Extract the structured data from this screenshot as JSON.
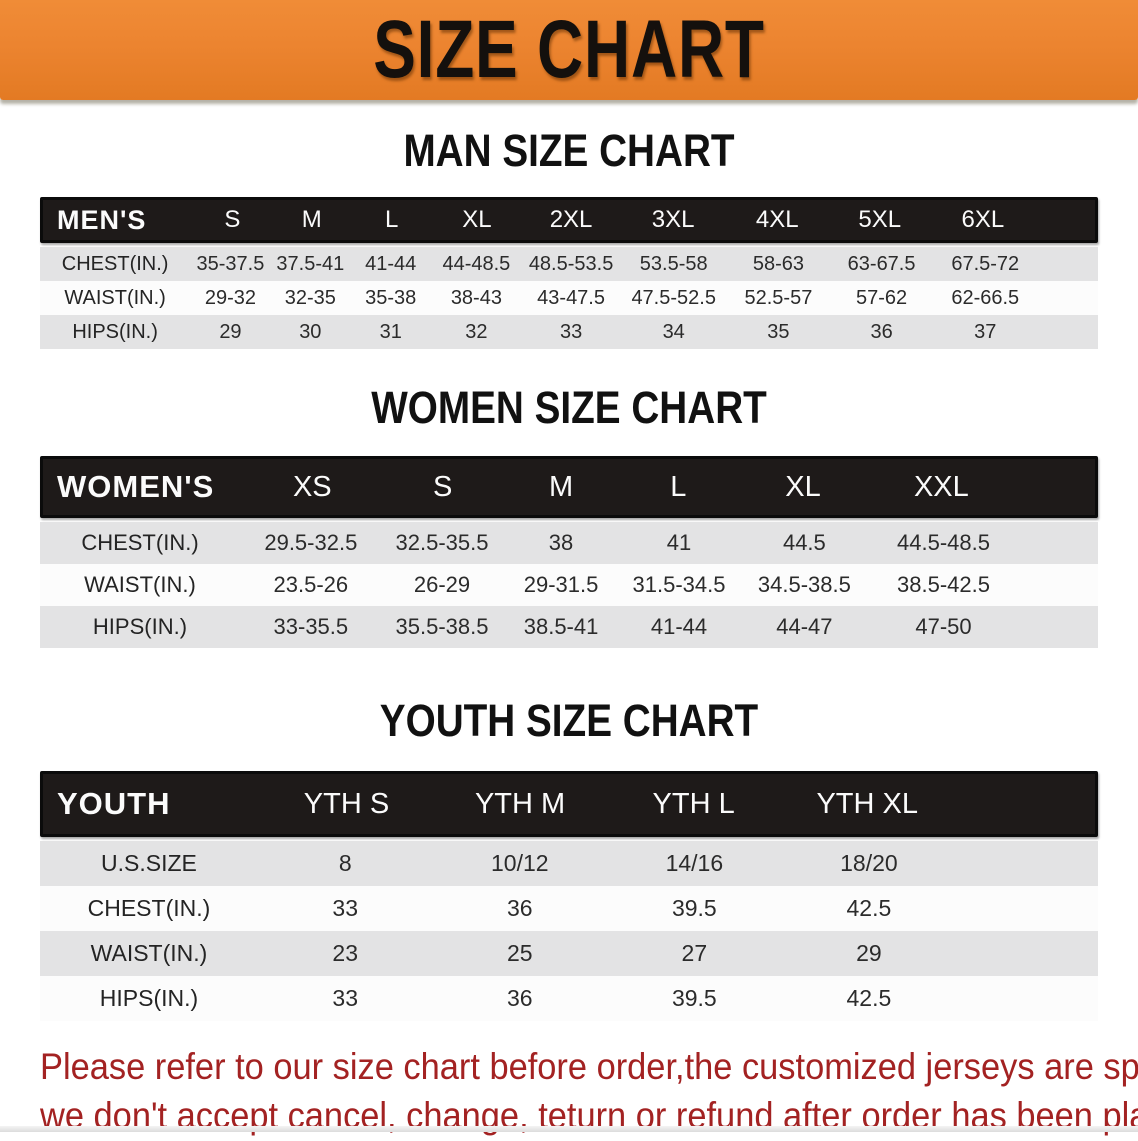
{
  "banner": {
    "title": "SIZE CHART",
    "bg_color": "#EC8430"
  },
  "tables": [
    {
      "heading": "MAN SIZE CHART",
      "group_label": "MEN'S",
      "sizes": [
        "S",
        "M",
        "L",
        "XL",
        "2XL",
        "3XL",
        "4XL",
        "5XL",
        "6XL"
      ],
      "rows": [
        {
          "label": "CHEST(IN.)",
          "values": [
            "35-37.5",
            "37.5-41",
            "41-44",
            "44-48.5",
            "48.5-53.5",
            "53.5-58",
            "58-63",
            "63-67.5",
            "67.5-72"
          ]
        },
        {
          "label": "WAIST(IN.)",
          "values": [
            "29-32",
            "32-35",
            "35-38",
            "38-43",
            "43-47.5",
            "47.5-52.5",
            "52.5-57",
            "57-62",
            "62-66.5"
          ]
        },
        {
          "label": "HIPS(IN.)",
          "values": [
            "29",
            "30",
            "31",
            "32",
            "33",
            "34",
            "35",
            "36",
            "37"
          ]
        }
      ]
    },
    {
      "heading": "WOMEN SIZE CHART",
      "group_label": "WOMEN'S",
      "sizes": [
        "XS",
        "S",
        "M",
        "L",
        "XL",
        "XXL"
      ],
      "rows": [
        {
          "label": "CHEST(IN.)",
          "values": [
            "29.5-32.5",
            "32.5-35.5",
            "38",
            "41",
            "44.5",
            "44.5-48.5"
          ]
        },
        {
          "label": "WAIST(IN.)",
          "values": [
            "23.5-26",
            "26-29",
            "29-31.5",
            "31.5-34.5",
            "34.5-38.5",
            "38.5-42.5"
          ]
        },
        {
          "label": "HIPS(IN.)",
          "values": [
            "33-35.5",
            "35.5-38.5",
            "38.5-41",
            "41-44",
            "44-47",
            "47-50"
          ]
        }
      ]
    },
    {
      "heading": "YOUTH SIZE CHART",
      "group_label": "YOUTH",
      "sizes": [
        "YTH S",
        "YTH M",
        "YTH L",
        "YTH XL"
      ],
      "rows": [
        {
          "label": "U.S.SIZE",
          "values": [
            "8",
            "10/12",
            "14/16",
            "18/20"
          ]
        },
        {
          "label": "CHEST(IN.)",
          "values": [
            "33",
            "36",
            "39.5",
            "42.5"
          ]
        },
        {
          "label": "WAIST(IN.)",
          "values": [
            "23",
            "25",
            "27",
            "29"
          ]
        },
        {
          "label": "HIPS(IN.)",
          "values": [
            "33",
            "36",
            "39.5",
            "42.5"
          ]
        }
      ]
    }
  ],
  "disclaimer": {
    "color": "#A32222",
    "lines": [
      "Please refer to our size chart before order,the customized jerseys are special products,",
      "we don't accept cancel, change, teturn or refund after order has been placed!"
    ]
  }
}
